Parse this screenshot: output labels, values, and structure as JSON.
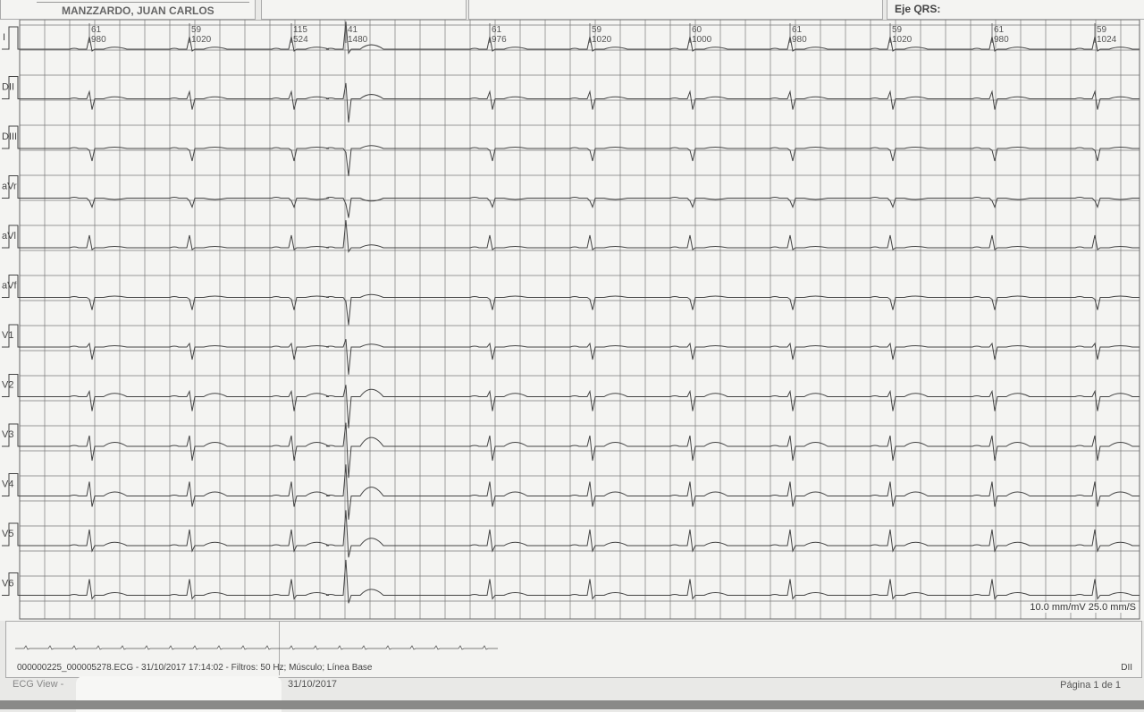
{
  "header": {
    "patient_name": "MANZZARDO, JUAN CARLOS",
    "qrs_axis_label": "Eje QRS:"
  },
  "leads": [
    "I",
    "DII",
    "DIII",
    "aVr",
    "aVl",
    "aVf",
    "V1",
    "V2",
    "V3",
    "V4",
    "V5",
    "V6"
  ],
  "beat_annotations": [
    {
      "hr": "61",
      "rr": "980"
    },
    {
      "hr": "59",
      "rr": "1020"
    },
    {
      "hr": "115",
      "rr": "524"
    },
    {
      "hr": "41",
      "rr": "1480"
    },
    {
      "hr": "61",
      "rr": "976"
    },
    {
      "hr": "59",
      "rr": "1020"
    },
    {
      "hr": "60",
      "rr": "1000"
    },
    {
      "hr": "61",
      "rr": "980"
    },
    {
      "hr": "59",
      "rr": "1020"
    },
    {
      "hr": "61",
      "rr": "980"
    },
    {
      "hr": "59",
      "rr": "1024"
    }
  ],
  "scale": "10.0 mm/mV 25.0 mm/S",
  "rhythm_strip": {
    "file_info": "000000225_000005278.ECG - 31/10/2017 17:14:02 - Filtros: 50 Hz; Músculo; Línea Base",
    "lead": "DII"
  },
  "footer": {
    "app": "ECG View -",
    "date": "31/10/2017",
    "page": "Página 1 de 1"
  },
  "colors": {
    "paper": "#f4f4f2",
    "grid": "#7a7a7a",
    "trace": "#444444"
  }
}
